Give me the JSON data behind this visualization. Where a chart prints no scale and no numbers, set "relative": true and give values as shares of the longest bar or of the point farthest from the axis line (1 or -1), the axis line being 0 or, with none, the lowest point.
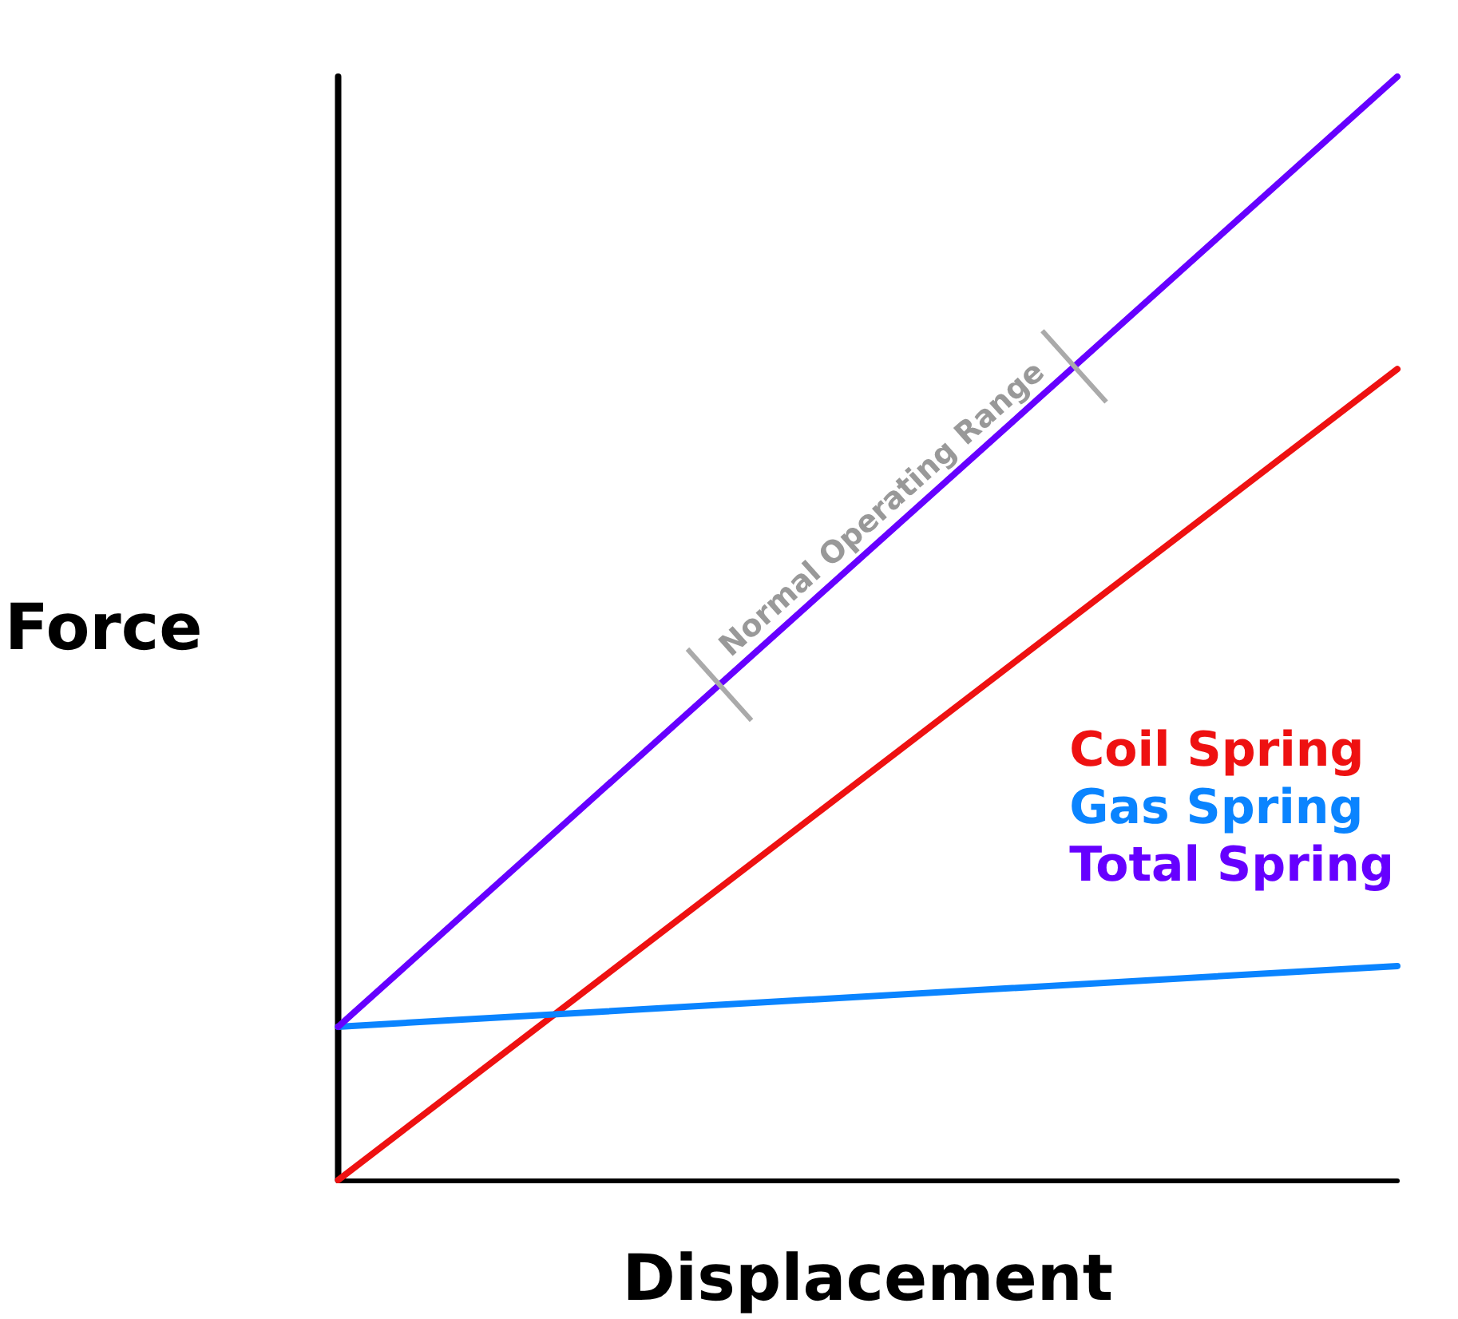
{
  "chart_data": {
    "type": "line",
    "relative": true,
    "xlabel": "Displacement",
    "ylabel": "Force",
    "categories": [
      null,
      null
    ],
    "series": [
      {
        "name": "Coil Spring",
        "color": "#ee1111",
        "values": [
          0,
          0.735
        ]
      },
      {
        "name": "Gas Spring",
        "color": "#0a84ff",
        "values": [
          0.139,
          0.194
        ]
      },
      {
        "name": "Total Spring",
        "color": "#6600ff",
        "values": [
          0.139,
          1
        ]
      }
    ],
    "annotations": [
      "Normal Operating Range"
    ],
    "legend": "right",
    "marker": "none",
    "line_style": "solid",
    "grid": false
  }
}
